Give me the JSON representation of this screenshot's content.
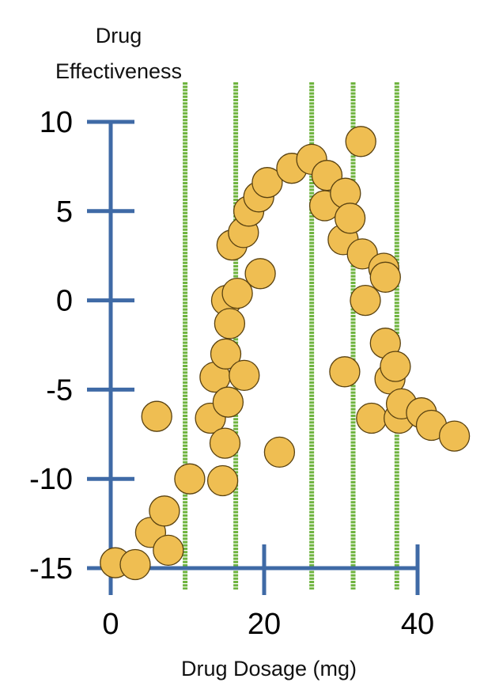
{
  "chart_data": {
    "type": "scatter",
    "title": "",
    "ylabel_lines": [
      "Drug",
      "Effectiveness"
    ],
    "xlabel": "Drug Dosage (mg)",
    "xlim": [
      0,
      40
    ],
    "ylim": [
      -15,
      10
    ],
    "x_ticks": [
      0,
      20,
      40
    ],
    "y_ticks": [
      10,
      5,
      0,
      -5,
      -10,
      -15
    ],
    "x_tick_labels": [
      "0",
      "20",
      "40"
    ],
    "y_tick_labels": [
      "10",
      "5",
      "0",
      "-5",
      "-10",
      "-15"
    ],
    "vertical_lines_x": [
      9.7,
      16.3,
      26.2,
      31.6,
      37.3
    ],
    "colors": {
      "axis": "#3f6aa6",
      "point_fill": "#efbe52",
      "point_stroke": "#5a4210",
      "vertical_line": "#6fb43f"
    },
    "points": [
      {
        "x": 0.6,
        "y": -14.7
      },
      {
        "x": 3.2,
        "y": -14.8
      },
      {
        "x": 5.2,
        "y": -13.0
      },
      {
        "x": 6.0,
        "y": -6.5
      },
      {
        "x": 7.0,
        "y": -11.8
      },
      {
        "x": 7.5,
        "y": -14.0
      },
      {
        "x": 10.3,
        "y": -10.0
      },
      {
        "x": 13.0,
        "y": -6.6
      },
      {
        "x": 13.6,
        "y": -4.3
      },
      {
        "x": 14.6,
        "y": -10.1
      },
      {
        "x": 14.9,
        "y": -8.0
      },
      {
        "x": 15.0,
        "y": -3.0
      },
      {
        "x": 15.1,
        "y": 0.0
      },
      {
        "x": 15.3,
        "y": -5.7
      },
      {
        "x": 15.5,
        "y": -1.3
      },
      {
        "x": 15.8,
        "y": 3.1
      },
      {
        "x": 16.5,
        "y": 0.4
      },
      {
        "x": 17.3,
        "y": 3.8
      },
      {
        "x": 17.4,
        "y": -4.2
      },
      {
        "x": 18.0,
        "y": 5.0
      },
      {
        "x": 19.3,
        "y": 5.8
      },
      {
        "x": 19.5,
        "y": 1.5
      },
      {
        "x": 20.4,
        "y": 6.6
      },
      {
        "x": 22.0,
        "y": -8.5
      },
      {
        "x": 23.6,
        "y": 7.4
      },
      {
        "x": 26.2,
        "y": 7.9
      },
      {
        "x": 27.9,
        "y": 5.3
      },
      {
        "x": 28.2,
        "y": 7.0
      },
      {
        "x": 30.3,
        "y": 3.4
      },
      {
        "x": 30.5,
        "y": -4.0
      },
      {
        "x": 30.6,
        "y": 6.0
      },
      {
        "x": 31.2,
        "y": 4.6
      },
      {
        "x": 32.6,
        "y": 8.9
      },
      {
        "x": 32.8,
        "y": 2.6
      },
      {
        "x": 33.2,
        "y": 0.0
      },
      {
        "x": 34.0,
        "y": -6.6
      },
      {
        "x": 35.6,
        "y": 1.8
      },
      {
        "x": 35.8,
        "y": 1.3
      },
      {
        "x": 35.8,
        "y": -2.4
      },
      {
        "x": 36.4,
        "y": -4.4
      },
      {
        "x": 37.1,
        "y": -3.7
      },
      {
        "x": 37.6,
        "y": -6.6
      },
      {
        "x": 37.9,
        "y": -5.8
      },
      {
        "x": 40.5,
        "y": -6.3
      },
      {
        "x": 41.8,
        "y": -7.0
      },
      {
        "x": 44.8,
        "y": -7.6
      }
    ]
  }
}
